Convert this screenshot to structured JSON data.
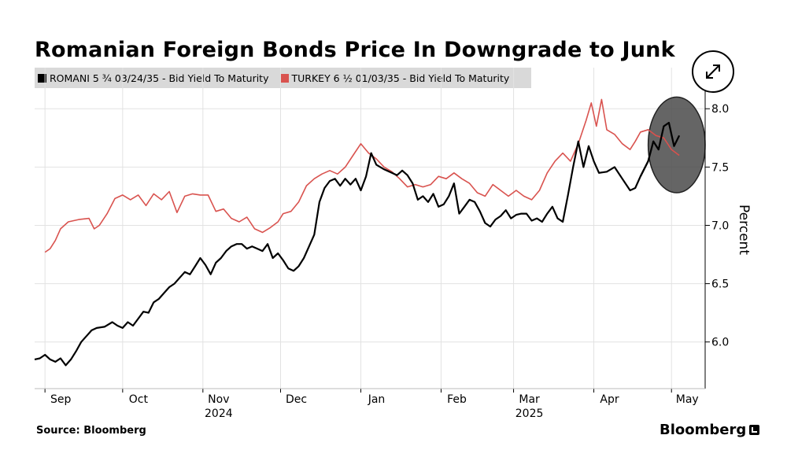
{
  "header": {
    "title": "Romanian Foreign Bonds Price In Downgrade to Junk",
    "expand_icon": "expand-icon"
  },
  "footer": {
    "source": "Source: Bloomberg",
    "brand": "Bloomberg"
  },
  "chart_data": {
    "type": "line",
    "title": "Romanian Foreign Bonds Price In Downgrade to Junk",
    "ylabel": "Percent",
    "ylim": [
      5.6,
      8.15
    ],
    "yticks": [
      6.0,
      6.5,
      7.0,
      7.5,
      8.0
    ],
    "ytick_labels": [
      "6.0",
      "6.5",
      "7.0",
      "7.5",
      "8.0"
    ],
    "x_range": [
      "2024-08-28",
      "2025-05-14"
    ],
    "x_ticks": [
      {
        "label": "Sep",
        "date": "2024-09-01",
        "year": ""
      },
      {
        "label": "Oct",
        "date": "2024-10-01",
        "year": ""
      },
      {
        "label": "Nov",
        "date": "2024-11-01",
        "year": "2024"
      },
      {
        "label": "Dec",
        "date": "2024-12-01",
        "year": ""
      },
      {
        "label": "Jan",
        "date": "2025-01-01",
        "year": ""
      },
      {
        "label": "Feb",
        "date": "2025-02-01",
        "year": ""
      },
      {
        "label": "Mar",
        "date": "2025-03-01",
        "year": "2025"
      },
      {
        "label": "Apr",
        "date": "2025-04-01",
        "year": ""
      },
      {
        "label": "May",
        "date": "2025-05-01",
        "year": ""
      }
    ],
    "grid": true,
    "legend_position": "top-left",
    "highlight_circle": {
      "from": "2025-04-22",
      "to": "2025-05-14",
      "y_from": 7.28,
      "y_to": 8.1,
      "color": "#4a4a4a"
    },
    "series": [
      {
        "name": "ROMANI 5 ¾ 03/24/35 - Bid Yield To Maturity",
        "color": "#000000",
        "points": [
          [
            "2024-08-28",
            5.85
          ],
          [
            "2024-08-30",
            5.86
          ],
          [
            "2024-09-01",
            5.89
          ],
          [
            "2024-09-03",
            5.85
          ],
          [
            "2024-09-05",
            5.83
          ],
          [
            "2024-09-07",
            5.86
          ],
          [
            "2024-09-09",
            5.8
          ],
          [
            "2024-09-11",
            5.85
          ],
          [
            "2024-09-13",
            5.92
          ],
          [
            "2024-09-15",
            6.0
          ],
          [
            "2024-09-17",
            6.05
          ],
          [
            "2024-09-19",
            6.1
          ],
          [
            "2024-09-21",
            6.12
          ],
          [
            "2024-09-24",
            6.13
          ],
          [
            "2024-09-27",
            6.17
          ],
          [
            "2024-09-29",
            6.14
          ],
          [
            "2024-10-01",
            6.12
          ],
          [
            "2024-10-03",
            6.17
          ],
          [
            "2024-10-05",
            6.14
          ],
          [
            "2024-10-07",
            6.2
          ],
          [
            "2024-10-09",
            6.26
          ],
          [
            "2024-10-11",
            6.25
          ],
          [
            "2024-10-13",
            6.34
          ],
          [
            "2024-10-15",
            6.37
          ],
          [
            "2024-10-17",
            6.42
          ],
          [
            "2024-10-19",
            6.47
          ],
          [
            "2024-10-21",
            6.5
          ],
          [
            "2024-10-23",
            6.55
          ],
          [
            "2024-10-25",
            6.6
          ],
          [
            "2024-10-27",
            6.58
          ],
          [
            "2024-10-29",
            6.65
          ],
          [
            "2024-10-31",
            6.72
          ],
          [
            "2024-11-02",
            6.66
          ],
          [
            "2024-11-04",
            6.58
          ],
          [
            "2024-11-06",
            6.68
          ],
          [
            "2024-11-08",
            6.72
          ],
          [
            "2024-11-10",
            6.78
          ],
          [
            "2024-11-12",
            6.82
          ],
          [
            "2024-11-14",
            6.84
          ],
          [
            "2024-11-16",
            6.84
          ],
          [
            "2024-11-18",
            6.8
          ],
          [
            "2024-11-20",
            6.82
          ],
          [
            "2024-11-22",
            6.8
          ],
          [
            "2024-11-24",
            6.78
          ],
          [
            "2024-11-26",
            6.84
          ],
          [
            "2024-11-28",
            6.72
          ],
          [
            "2024-11-30",
            6.76
          ],
          [
            "2024-12-02",
            6.7
          ],
          [
            "2024-12-04",
            6.63
          ],
          [
            "2024-12-06",
            6.61
          ],
          [
            "2024-12-08",
            6.65
          ],
          [
            "2024-12-10",
            6.72
          ],
          [
            "2024-12-12",
            6.82
          ],
          [
            "2024-12-14",
            6.92
          ],
          [
            "2024-12-16",
            7.2
          ],
          [
            "2024-12-18",
            7.32
          ],
          [
            "2024-12-20",
            7.38
          ],
          [
            "2024-12-22",
            7.4
          ],
          [
            "2024-12-24",
            7.34
          ],
          [
            "2024-12-26",
            7.4
          ],
          [
            "2024-12-28",
            7.35
          ],
          [
            "2024-12-30",
            7.4
          ],
          [
            "2025-01-01",
            7.3
          ],
          [
            "2025-01-03",
            7.42
          ],
          [
            "2025-01-05",
            7.62
          ],
          [
            "2025-01-07",
            7.52
          ],
          [
            "2025-01-10",
            7.48
          ],
          [
            "2025-01-13",
            7.45
          ],
          [
            "2025-01-15",
            7.43
          ],
          [
            "2025-01-17",
            7.47
          ],
          [
            "2025-01-19",
            7.43
          ],
          [
            "2025-01-21",
            7.36
          ],
          [
            "2025-01-23",
            7.22
          ],
          [
            "2025-01-25",
            7.25
          ],
          [
            "2025-01-27",
            7.2
          ],
          [
            "2025-01-29",
            7.27
          ],
          [
            "2025-01-31",
            7.16
          ],
          [
            "2025-02-02",
            7.18
          ],
          [
            "2025-02-04",
            7.25
          ],
          [
            "2025-02-06",
            7.36
          ],
          [
            "2025-02-08",
            7.1
          ],
          [
            "2025-02-10",
            7.16
          ],
          [
            "2025-02-12",
            7.22
          ],
          [
            "2025-02-14",
            7.2
          ],
          [
            "2025-02-16",
            7.12
          ],
          [
            "2025-02-18",
            7.02
          ],
          [
            "2025-02-20",
            6.99
          ],
          [
            "2025-02-22",
            7.05
          ],
          [
            "2025-02-24",
            7.08
          ],
          [
            "2025-02-26",
            7.13
          ],
          [
            "2025-02-28",
            7.06
          ],
          [
            "2025-03-02",
            7.09
          ],
          [
            "2025-03-04",
            7.1
          ],
          [
            "2025-03-06",
            7.1
          ],
          [
            "2025-03-08",
            7.04
          ],
          [
            "2025-03-10",
            7.06
          ],
          [
            "2025-03-12",
            7.03
          ],
          [
            "2025-03-14",
            7.1
          ],
          [
            "2025-03-16",
            7.16
          ],
          [
            "2025-03-18",
            7.06
          ],
          [
            "2025-03-20",
            7.03
          ],
          [
            "2025-03-22",
            7.26
          ],
          [
            "2025-03-24",
            7.5
          ],
          [
            "2025-03-26",
            7.72
          ],
          [
            "2025-03-28",
            7.5
          ],
          [
            "2025-03-30",
            7.68
          ],
          [
            "2025-04-01",
            7.55
          ],
          [
            "2025-04-03",
            7.45
          ],
          [
            "2025-04-06",
            7.46
          ],
          [
            "2025-04-09",
            7.5
          ],
          [
            "2025-04-12",
            7.4
          ],
          [
            "2025-04-15",
            7.3
          ],
          [
            "2025-04-17",
            7.32
          ],
          [
            "2025-04-19",
            7.42
          ],
          [
            "2025-04-22",
            7.55
          ],
          [
            "2025-04-24",
            7.72
          ],
          [
            "2025-04-26",
            7.65
          ],
          [
            "2025-04-28",
            7.85
          ],
          [
            "2025-04-30",
            7.88
          ],
          [
            "2025-05-02",
            7.68
          ],
          [
            "2025-05-04",
            7.77
          ]
        ]
      },
      {
        "name": "TURKEY 6 ½ 01/03/35 - Bid Yield To Maturity",
        "color": "#d9534f",
        "points": [
          [
            "2024-09-01",
            6.77
          ],
          [
            "2024-09-03",
            6.8
          ],
          [
            "2024-09-05",
            6.87
          ],
          [
            "2024-09-07",
            6.97
          ],
          [
            "2024-09-10",
            7.03
          ],
          [
            "2024-09-14",
            7.05
          ],
          [
            "2024-09-18",
            7.06
          ],
          [
            "2024-09-20",
            6.97
          ],
          [
            "2024-09-22",
            7.0
          ],
          [
            "2024-09-25",
            7.1
          ],
          [
            "2024-09-28",
            7.23
          ],
          [
            "2024-10-01",
            7.26
          ],
          [
            "2024-10-04",
            7.22
          ],
          [
            "2024-10-07",
            7.26
          ],
          [
            "2024-10-10",
            7.17
          ],
          [
            "2024-10-13",
            7.27
          ],
          [
            "2024-10-16",
            7.22
          ],
          [
            "2024-10-19",
            7.29
          ],
          [
            "2024-10-22",
            7.11
          ],
          [
            "2024-10-25",
            7.25
          ],
          [
            "2024-10-28",
            7.27
          ],
          [
            "2024-10-31",
            7.26
          ],
          [
            "2024-11-03",
            7.26
          ],
          [
            "2024-11-06",
            7.12
          ],
          [
            "2024-11-09",
            7.14
          ],
          [
            "2024-11-12",
            7.06
          ],
          [
            "2024-11-15",
            7.03
          ],
          [
            "2024-11-18",
            7.07
          ],
          [
            "2024-11-21",
            6.97
          ],
          [
            "2024-11-24",
            6.94
          ],
          [
            "2024-11-27",
            6.98
          ],
          [
            "2024-11-30",
            7.03
          ],
          [
            "2024-12-02",
            7.1
          ],
          [
            "2024-12-05",
            7.12
          ],
          [
            "2024-12-08",
            7.2
          ],
          [
            "2024-12-11",
            7.34
          ],
          [
            "2024-12-14",
            7.4
          ],
          [
            "2024-12-17",
            7.44
          ],
          [
            "2024-12-20",
            7.47
          ],
          [
            "2024-12-23",
            7.44
          ],
          [
            "2024-12-26",
            7.5
          ],
          [
            "2024-12-29",
            7.6
          ],
          [
            "2025-01-01",
            7.7
          ],
          [
            "2025-01-04",
            7.62
          ],
          [
            "2025-01-07",
            7.57
          ],
          [
            "2025-01-10",
            7.5
          ],
          [
            "2025-01-13",
            7.46
          ],
          [
            "2025-01-16",
            7.4
          ],
          [
            "2025-01-19",
            7.33
          ],
          [
            "2025-01-22",
            7.35
          ],
          [
            "2025-01-25",
            7.33
          ],
          [
            "2025-01-28",
            7.35
          ],
          [
            "2025-01-31",
            7.42
          ],
          [
            "2025-02-03",
            7.4
          ],
          [
            "2025-02-06",
            7.45
          ],
          [
            "2025-02-09",
            7.4
          ],
          [
            "2025-02-12",
            7.36
          ],
          [
            "2025-02-15",
            7.28
          ],
          [
            "2025-02-18",
            7.25
          ],
          [
            "2025-02-21",
            7.35
          ],
          [
            "2025-02-24",
            7.3
          ],
          [
            "2025-02-27",
            7.25
          ],
          [
            "2025-03-02",
            7.3
          ],
          [
            "2025-03-05",
            7.25
          ],
          [
            "2025-03-08",
            7.22
          ],
          [
            "2025-03-11",
            7.3
          ],
          [
            "2025-03-14",
            7.45
          ],
          [
            "2025-03-17",
            7.55
          ],
          [
            "2025-03-20",
            7.62
          ],
          [
            "2025-03-23",
            7.55
          ],
          [
            "2025-03-26",
            7.7
          ],
          [
            "2025-03-29",
            7.9
          ],
          [
            "2025-03-31",
            8.05
          ],
          [
            "2025-04-02",
            7.85
          ],
          [
            "2025-04-04",
            8.08
          ],
          [
            "2025-04-06",
            7.82
          ],
          [
            "2025-04-09",
            7.78
          ],
          [
            "2025-04-12",
            7.7
          ],
          [
            "2025-04-15",
            7.65
          ],
          [
            "2025-04-17",
            7.72
          ],
          [
            "2025-04-19",
            7.8
          ],
          [
            "2025-04-22",
            7.82
          ],
          [
            "2025-04-25",
            7.77
          ],
          [
            "2025-04-28",
            7.75
          ],
          [
            "2025-05-01",
            7.65
          ],
          [
            "2025-05-04",
            7.6
          ]
        ]
      }
    ]
  }
}
